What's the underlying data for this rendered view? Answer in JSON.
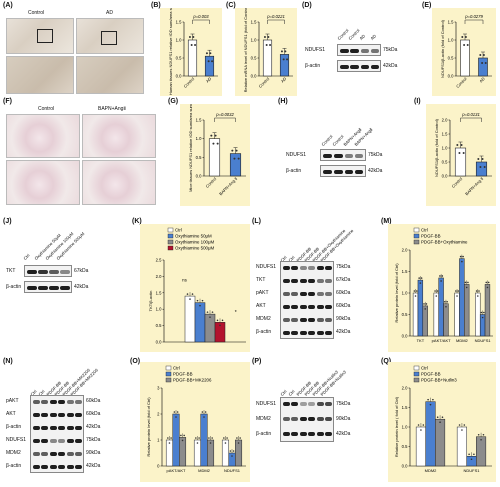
{
  "panels": {
    "A": {
      "label": "(A)",
      "left": "Control",
      "right": "AD"
    },
    "B": {
      "label": "(B)",
      "ylabel": "Human tissues NDUFS1 relative IOD sum/area sum",
      "p": "p=0.003",
      "x": [
        "Control",
        "AD"
      ]
    },
    "C": {
      "label": "(C)",
      "ylabel": "Relative mRNA level of NDUFS1 (fold of Control)",
      "p": "p=0.0221",
      "x": [
        "Control",
        "AD"
      ]
    },
    "D": {
      "label": "(D)",
      "lanes": [
        "Control",
        "Control",
        "AD",
        "AD"
      ],
      "rows": [
        {
          "name": "NDUFS1",
          "kda": "75kDa"
        },
        {
          "name": "β-actin",
          "kda": "42kDa"
        }
      ]
    },
    "E": {
      "label": "(E)",
      "ylabel": "NDUFS1/β-actin (fold of Control)",
      "p": "p=0.0279",
      "x": [
        "Control",
        "AD"
      ]
    },
    "F": {
      "label": "(F)",
      "left": "Control",
      "right": "BAPN+AngⅡ"
    },
    "G": {
      "label": "(G)",
      "ylabel": "Mice tissues NDUFS1 relative IOD sum/area sum",
      "p": "p=0.0032",
      "x": [
        "Control",
        "BAPN+Ang Ⅱ"
      ]
    },
    "H": {
      "label": "(H)",
      "lanes": [
        "Control",
        "Control",
        "BAPN+AngⅡ",
        "BAPN+AngⅡ"
      ],
      "rows": [
        {
          "name": "NDUFS1",
          "kda": "75kDa"
        },
        {
          "name": "β-actin",
          "kda": "42kDa"
        }
      ]
    },
    "I": {
      "label": "(I)",
      "ylabel": "NDUFS1/β-actin (fold of Control)",
      "p": "p=0.0131",
      "x": [
        "Control",
        "BAPN+Ang Ⅱ"
      ]
    },
    "J": {
      "label": "(J)",
      "lanes": [
        "Ctrl",
        "Oxythiamine 50μM",
        "Oxythiamine 100μM",
        "Oxythiamine 500μM"
      ],
      "rows": [
        {
          "name": "TKT",
          "kda": "67kDa"
        },
        {
          "name": "β-actin",
          "kda": "42kDa"
        }
      ]
    },
    "K": {
      "label": "(K)",
      "ylabel": "TKT/β-actin",
      "legend": [
        "Ctrl",
        "Oxythiamine 50μM",
        "Oxythiamine 100μM",
        "Oxythiamine 500μM"
      ],
      "ns": "ns",
      "star": "*"
    },
    "L": {
      "label": "(L)",
      "lanes": [
        "Ctrl",
        "Ctrl",
        "PDGF-BB",
        "PDGF-BB",
        "PDGF-BB+Oxythiamine",
        "PDGF-BB+Oxythiamine"
      ],
      "rows": [
        {
          "name": "NDUFS1",
          "kda": "75kDa"
        },
        {
          "name": "TKT",
          "kda": "67kDa"
        },
        {
          "name": "pAKT",
          "kda": "60kDa"
        },
        {
          "name": "AKT",
          "kda": "60kDa"
        },
        {
          "name": "MDM2",
          "kda": "90kDa"
        },
        {
          "name": "β-actin",
          "kda": "42kDa"
        }
      ]
    },
    "M": {
      "label": "(M)",
      "ylabel": "Relative protein level (fold of Ctrl)",
      "legend": [
        "Ctrl",
        "PDGF-BB",
        "PDGF-BB+Oxythiamine"
      ],
      "x": [
        "TKT",
        "pAKT/AKT",
        "MDM2",
        "NDUFS1"
      ]
    },
    "N": {
      "label": "(N)",
      "lanes": [
        "Ctrl",
        "Ctrl",
        "PDGF-BB",
        "PDGF-BB",
        "PDGF-BB+MK2206",
        "PDGF-BB+MK2206"
      ],
      "rows": [
        {
          "name": "pAKT",
          "kda": "60kDa"
        },
        {
          "name": "AKT",
          "kda": "60kDa"
        },
        {
          "name": "β-actin",
          "kda": "42kDa"
        },
        {
          "name": "NDUFS1",
          "kda": "75kDa"
        },
        {
          "name": "MDM2",
          "kda": "90kDa"
        },
        {
          "name": "β-actin",
          "kda": "42kDa"
        }
      ]
    },
    "O": {
      "label": "(O)",
      "ylabel": "Relative protein level (fold of Ctrl)",
      "legend": [
        "Ctrl",
        "PDGF-BB",
        "PDGF-BB+MK2206"
      ],
      "x": [
        "pAKT/AKT",
        "MDM2",
        "NDUFS1"
      ]
    },
    "P": {
      "label": "(P)",
      "lanes": [
        "Ctrl",
        "Ctrl",
        "PDGF-BB",
        "PDGF-BB",
        "PDGF-BB+Nutlin3",
        "PDGF-BB+Nutlin3"
      ],
      "rows": [
        {
          "name": "NDUFS1",
          "kda": "75kDa"
        },
        {
          "name": "MDM2",
          "kda": "90kDa"
        },
        {
          "name": "β-actin",
          "kda": "42kDa"
        }
      ]
    },
    "Q": {
      "label": "(Q)",
      "ylabel": "Relative protein level ( fold of Ctrl)",
      "legend": [
        "Ctrl",
        "PDGF-BB",
        "PDGF-BB+Nutlin3"
      ],
      "x": [
        "MDM2",
        "NDUFS1"
      ]
    }
  },
  "colors": {
    "white": "#ffffff",
    "blue": "#4a7fcf",
    "gray": "#8c8c8c",
    "darkred": "#b3122e",
    "yellow": "#fbf3c9"
  },
  "chart_data": [
    {
      "id": "B",
      "type": "bar",
      "categories": [
        "Control",
        "AD"
      ],
      "values": [
        1.0,
        0.55
      ],
      "ylim": [
        0,
        1.5
      ],
      "yticks": [
        "0.0",
        "0.5",
        "1.0",
        "1.5"
      ]
    },
    {
      "id": "C",
      "type": "bar",
      "categories": [
        "Control",
        "AD"
      ],
      "values": [
        1.0,
        0.6
      ],
      "ylim": [
        0,
        1.5
      ],
      "yticks": [
        "0.0",
        "0.5",
        "1.0",
        "1.5"
      ]
    },
    {
      "id": "E",
      "type": "bar",
      "categories": [
        "Control",
        "AD"
      ],
      "values": [
        1.0,
        0.5
      ],
      "ylim": [
        0,
        1.5
      ],
      "yticks": [
        "0.0",
        "0.5",
        "1.0",
        "1.5"
      ]
    },
    {
      "id": "G",
      "type": "bar",
      "categories": [
        "Control",
        "BAPN+Ang Ⅱ"
      ],
      "values": [
        1.0,
        0.6
      ],
      "ylim": [
        0,
        1.5
      ],
      "yticks": [
        "0.0",
        "0.5",
        "1.0",
        "1.5"
      ]
    },
    {
      "id": "I",
      "type": "bar",
      "categories": [
        "Control",
        "BAPN+Ang Ⅱ"
      ],
      "values": [
        1.0,
        0.5
      ],
      "ylim": [
        0,
        2.0
      ],
      "yticks": [
        "0.0",
        "0.5",
        "1.0",
        "1.5",
        "2.0"
      ]
    },
    {
      "id": "K",
      "type": "bar",
      "categories": [
        "Ctrl",
        "Oxythiamine 50μM",
        "Oxythiamine 100μM",
        "Oxythiamine 500μM"
      ],
      "values": [
        1.4,
        1.2,
        0.85,
        0.6
      ],
      "ylim": [
        0,
        2.5
      ],
      "yticks": [
        "0.0",
        "0.5",
        "1.0",
        "1.5",
        "2.0",
        "2.5"
      ]
    },
    {
      "id": "M",
      "type": "bar",
      "categories": [
        "TKT",
        "pAKT/AKT",
        "MDM2",
        "NDUFS1"
      ],
      "series": [
        {
          "name": "Ctrl",
          "values": [
            1.0,
            1.0,
            1.0,
            1.0
          ]
        },
        {
          "name": "PDGF-BB",
          "values": [
            1.3,
            1.35,
            1.8,
            0.5
          ]
        },
        {
          "name": "PDGF-BB+Oxythiamine",
          "values": [
            0.7,
            0.75,
            1.2,
            1.2
          ]
        }
      ],
      "ylim": [
        0,
        2.0
      ],
      "yticks": [
        "0.0",
        "0.5",
        "1.0",
        "1.5",
        "2.0"
      ]
    },
    {
      "id": "O",
      "type": "bar",
      "categories": [
        "pAKT/AKT",
        "MDM2",
        "NDUFS1"
      ],
      "series": [
        {
          "name": "Ctrl",
          "values": [
            1.0,
            1.0,
            1.0
          ]
        },
        {
          "name": "PDGF-BB",
          "values": [
            2.0,
            2.0,
            0.5
          ]
        },
        {
          "name": "PDGF-BB+MK2206",
          "values": [
            1.1,
            1.0,
            1.0
          ]
        }
      ],
      "ylim": [
        0,
        3
      ],
      "yticks": [
        "0",
        "1",
        "2",
        "3"
      ]
    },
    {
      "id": "Q",
      "type": "bar",
      "categories": [
        "MDM2",
        "NDUFS1"
      ],
      "series": [
        {
          "name": "Ctrl",
          "values": [
            1.0,
            1.0
          ]
        },
        {
          "name": "PDGF-BB",
          "values": [
            1.65,
            0.25
          ]
        },
        {
          "name": "PDGF-BB+Nutlin3",
          "values": [
            1.2,
            0.75
          ]
        }
      ],
      "ylim": [
        0,
        2.0
      ],
      "yticks": [
        "0.0",
        "0.5",
        "1.0",
        "1.5",
        "2.0"
      ]
    }
  ]
}
